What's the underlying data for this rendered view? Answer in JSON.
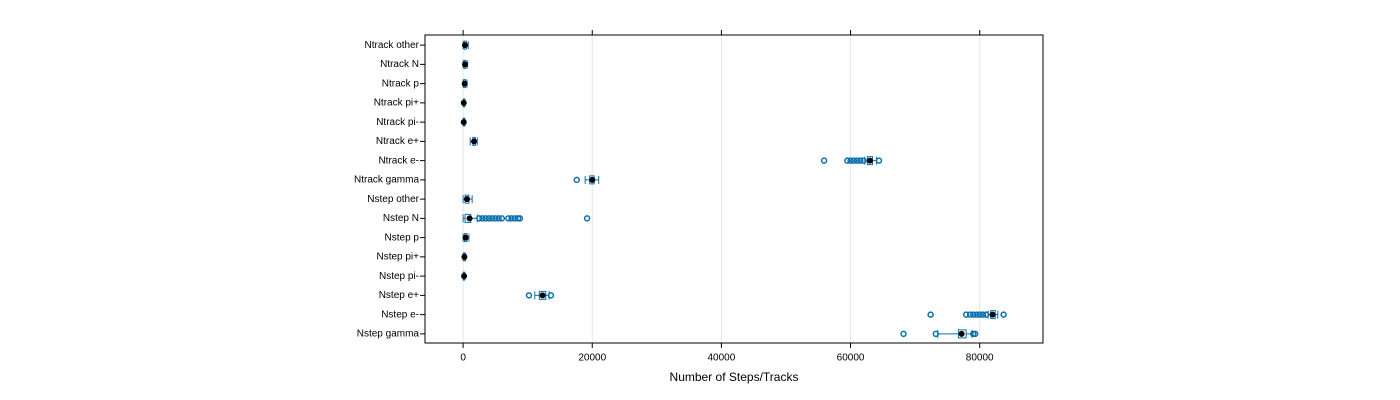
{
  "chart_data": {
    "type": "box",
    "xlabel": "Number of Steps/Tracks",
    "color": "#0b6fae",
    "median_color": "#000000",
    "grid": true,
    "xlim": [
      -5900,
      89800
    ],
    "xticks": [
      0,
      20000,
      40000,
      60000,
      80000
    ],
    "categories": [
      "Ntrack other",
      "Ntrack N",
      "Ntrack p",
      "Ntrack pi+",
      "Ntrack pi-",
      "Ntrack e+",
      "Ntrack e-",
      "Ntrack gamma",
      "Nstep other",
      "Nstep N",
      "Nstep p",
      "Nstep pi+",
      "Nstep pi-",
      "Nstep e+",
      "Nstep e-",
      "Nstep gamma"
    ],
    "boxes": [
      {
        "min": 0,
        "q1": 150,
        "median": 300,
        "q3": 500,
        "max": 800,
        "outliers": []
      },
      {
        "min": 0,
        "q1": 150,
        "median": 300,
        "q3": 450,
        "max": 700,
        "outliers": []
      },
      {
        "min": 0,
        "q1": 100,
        "median": 250,
        "q3": 400,
        "max": 600,
        "outliers": []
      },
      {
        "min": 0,
        "q1": 50,
        "median": 100,
        "q3": 200,
        "max": 300,
        "outliers": []
      },
      {
        "min": 0,
        "q1": 50,
        "median": 100,
        "q3": 200,
        "max": 300,
        "outliers": []
      },
      {
        "min": 1100,
        "q1": 1500,
        "median": 1700,
        "q3": 1900,
        "max": 2200,
        "outliers": []
      },
      {
        "min": 62200,
        "q1": 62600,
        "median": 63000,
        "q3": 63400,
        "max": 64000,
        "outliers": [
          55900,
          59500,
          60000,
          60500,
          61000,
          61500,
          62000,
          64400
        ]
      },
      {
        "min": 18900,
        "q1": 19600,
        "median": 20000,
        "q3": 20300,
        "max": 21000,
        "outliers": [
          17600
        ]
      },
      {
        "min": 0,
        "q1": 300,
        "median": 600,
        "q3": 900,
        "max": 1400,
        "outliers": []
      },
      {
        "min": 0,
        "q1": 300,
        "median": 1000,
        "q3": 1200,
        "max": 2200,
        "outliers": [
          2500,
          3000,
          3500,
          4000,
          4500,
          5000,
          5500,
          6000,
          7000,
          7500,
          8000,
          8500,
          8800,
          19200
        ]
      },
      {
        "min": 0,
        "q1": 200,
        "median": 400,
        "q3": 600,
        "max": 900,
        "outliers": []
      },
      {
        "min": 0,
        "q1": 100,
        "median": 200,
        "q3": 300,
        "max": 400,
        "outliers": []
      },
      {
        "min": 0,
        "q1": 50,
        "median": 150,
        "q3": 200,
        "max": 300,
        "outliers": []
      },
      {
        "min": 11100,
        "q1": 11800,
        "median": 12300,
        "q3": 12800,
        "max": 13300,
        "outliers": [
          10200,
          13600
        ]
      },
      {
        "min": 81300,
        "q1": 81700,
        "median": 82000,
        "q3": 82400,
        "max": 82800,
        "outliers": [
          72400,
          77900,
          78500,
          79000,
          79500,
          80000,
          80500,
          81000,
          83700
        ]
      },
      {
        "min": 73500,
        "q1": 76700,
        "median": 77200,
        "q3": 77900,
        "max": 78800,
        "outliers": [
          68200,
          73200,
          79000,
          79300
        ]
      }
    ]
  }
}
